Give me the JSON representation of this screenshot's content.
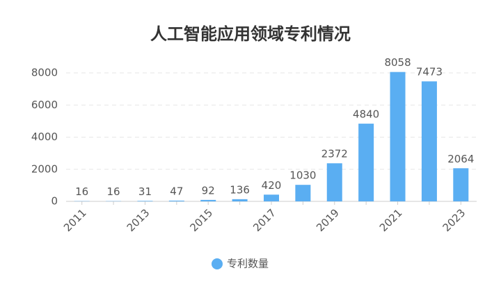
{
  "chart_data": {
    "type": "bar",
    "title": "人工智能应用领域专利情况",
    "categories": [
      "2011",
      null,
      "2013",
      null,
      "2015",
      null,
      "2017",
      null,
      "2019",
      null,
      "2021",
      null,
      "2023"
    ],
    "series": [
      {
        "name": "专利数量",
        "color": "#5aaef2",
        "values": [
          16,
          16,
          31,
          47,
          92,
          136,
          420,
          1030,
          2372,
          4840,
          8058,
          7473,
          2064
        ]
      }
    ],
    "ylim": [
      0,
      8000
    ],
    "yticks": [
      0,
      2000,
      4000,
      6000,
      8000
    ],
    "grid": true
  }
}
